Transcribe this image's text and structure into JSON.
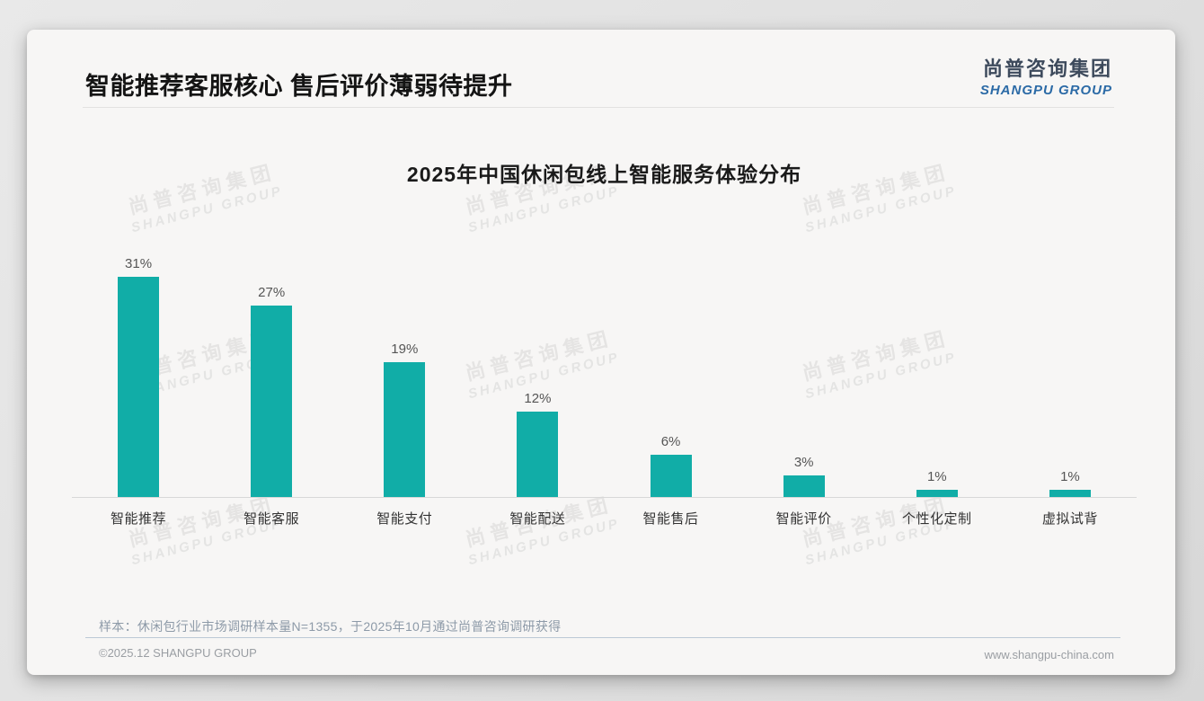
{
  "header": {
    "title": "智能推荐客服核心 售后评价薄弱待提升",
    "logo_cn": "尚普咨询集团",
    "logo_en": "SHANGPU GROUP"
  },
  "watermark": {
    "cn": "尚普咨询集团",
    "en": "SHANGPU GROUP"
  },
  "chart_data": {
    "type": "bar",
    "title": "2025年中国休闲包线上智能服务体验分布",
    "categories": [
      "智能推荐",
      "智能客服",
      "智能支付",
      "智能配送",
      "智能售后",
      "智能评价",
      "个性化定制",
      "虚拟试背"
    ],
    "values": [
      31,
      27,
      19,
      12,
      6,
      3,
      1,
      1
    ],
    "unit": "%",
    "bar_color": "#11ada7",
    "value_label_color": "#555555",
    "ylim": [
      0,
      33
    ],
    "grid": false,
    "data_labels": true,
    "legend": false,
    "xlabel": "",
    "ylabel": ""
  },
  "footer": {
    "note": "样本：休闲包行业市场调研样本量N=1355，于2025年10月通过尚普咨询调研获得",
    "copyright": "©2025.12 SHANGPU GROUP",
    "website": "www.shangpu-china.com"
  }
}
